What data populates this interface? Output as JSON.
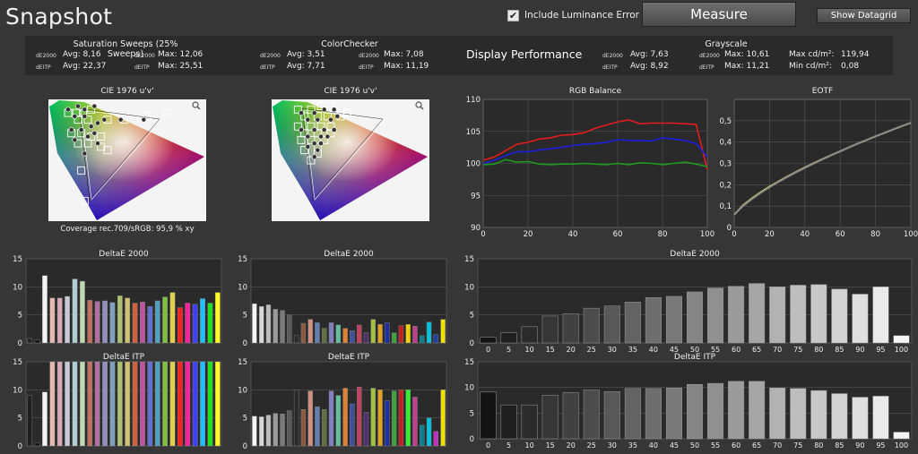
{
  "app": {
    "title": "Snapshot"
  },
  "toolbar": {
    "include_luminance_label": "Include Luminance Error",
    "include_luminance_checked": true,
    "measure_label": "Measure",
    "datagrid_label": "Show Datagrid"
  },
  "summary": {
    "saturation": {
      "title": "Saturation Sweeps (25% Sweeps)",
      "de2000_label": "dE2000",
      "deitp_label": "dEITP",
      "de2000_avg": "Avg: 8,16",
      "de2000_max": "Max: 12,06",
      "deitp_avg": "Avg: 22,37",
      "deitp_max": "Max: 25,51"
    },
    "colorchecker": {
      "title": "ColorChecker",
      "de2000_label": "dE2000",
      "deitp_label": "dEITP",
      "de2000_avg": "Avg: 3,51",
      "de2000_max": "Max: 7,08",
      "deitp_avg": "Avg: 7,71",
      "deitp_max": "Max: 11,19"
    },
    "display_performance": "Display Performance",
    "grayscale": {
      "title": "Grayscale",
      "de2000_label": "dE2000",
      "deitp_label": "dEITP",
      "de2000_avg": "Avg: 7,63",
      "de2000_max": "Max: 10,61",
      "deitp_avg": "Avg: 8,92",
      "deitp_max": "Max: 11,21",
      "max_cd_label": "Max cd/m²:",
      "max_cd": "119,94",
      "min_cd_label": "Min cd/m²:",
      "min_cd": "0,08"
    }
  },
  "colors": {
    "red": "#e51c1c",
    "green": "#1e9a1e",
    "blue": "#1e1ee0",
    "yellow": "#e0e070",
    "gray_line": "#888888"
  },
  "chart_data": [
    {
      "id": "cie1",
      "type": "scatter",
      "title": "CIE 1976 u'v'",
      "icon": "magnifier-icon",
      "annotation": "Coverage rec.709/sRGB:  95,9 % xy",
      "targets": [
        [
          0.13,
          0.52
        ],
        [
          0.155,
          0.52
        ],
        [
          0.175,
          0.52
        ],
        [
          0.2,
          0.53
        ],
        [
          0.16,
          0.5
        ],
        [
          0.19,
          0.5
        ],
        [
          0.25,
          0.5
        ],
        [
          0.3,
          0.5
        ],
        [
          0.37,
          0.51
        ],
        [
          0.43,
          0.52
        ],
        [
          0.14,
          0.46
        ],
        [
          0.17,
          0.46
        ],
        [
          0.2,
          0.45
        ],
        [
          0.23,
          0.45
        ],
        [
          0.16,
          0.43
        ],
        [
          0.19,
          0.43
        ],
        [
          0.23,
          0.42
        ],
        [
          0.17,
          0.35
        ],
        [
          0.18,
          0.26
        ],
        [
          0.25,
          0.41
        ]
      ],
      "measured": [
        [
          0.13,
          0.53
        ],
        [
          0.16,
          0.54
        ],
        [
          0.18,
          0.53
        ],
        [
          0.21,
          0.54
        ],
        [
          0.15,
          0.51
        ],
        [
          0.18,
          0.51
        ],
        [
          0.24,
          0.5
        ],
        [
          0.29,
          0.5
        ],
        [
          0.36,
          0.5
        ],
        [
          0.14,
          0.47
        ],
        [
          0.17,
          0.47
        ],
        [
          0.21,
          0.46
        ],
        [
          0.22,
          0.49
        ],
        [
          0.15,
          0.44
        ],
        [
          0.19,
          0.45
        ],
        [
          0.22,
          0.43
        ],
        [
          0.18,
          0.4
        ],
        [
          0.2,
          0.48
        ]
      ]
    },
    {
      "id": "cie2",
      "type": "scatter",
      "title": "CIE 1976 u'v'",
      "icon": "magnifier-icon",
      "targets": [
        [
          0.15,
          0.53
        ],
        [
          0.19,
          0.53
        ],
        [
          0.22,
          0.54
        ],
        [
          0.25,
          0.54
        ],
        [
          0.17,
          0.51
        ],
        [
          0.21,
          0.51
        ],
        [
          0.24,
          0.51
        ],
        [
          0.28,
          0.51
        ],
        [
          0.15,
          0.48
        ],
        [
          0.19,
          0.48
        ],
        [
          0.22,
          0.48
        ],
        [
          0.25,
          0.48
        ],
        [
          0.3,
          0.52
        ],
        [
          0.17,
          0.46
        ],
        [
          0.21,
          0.46
        ],
        [
          0.25,
          0.46
        ],
        [
          0.19,
          0.44
        ],
        [
          0.23,
          0.44
        ],
        [
          0.21,
          0.42
        ],
        [
          0.16,
          0.44
        ],
        [
          0.21,
          0.4
        ],
        [
          0.19,
          0.38
        ],
        [
          0.17,
          0.41
        ]
      ],
      "measured": [
        [
          0.16,
          0.52
        ],
        [
          0.2,
          0.52
        ],
        [
          0.23,
          0.53
        ],
        [
          0.26,
          0.53
        ],
        [
          0.18,
          0.5
        ],
        [
          0.21,
          0.5
        ],
        [
          0.25,
          0.5
        ],
        [
          0.27,
          0.51
        ],
        [
          0.16,
          0.47
        ],
        [
          0.2,
          0.47
        ],
        [
          0.23,
          0.47
        ],
        [
          0.26,
          0.47
        ],
        [
          0.18,
          0.45
        ],
        [
          0.22,
          0.45
        ],
        [
          0.24,
          0.45
        ],
        [
          0.2,
          0.43
        ],
        [
          0.22,
          0.43
        ],
        [
          0.18,
          0.42
        ],
        [
          0.21,
          0.41
        ],
        [
          0.2,
          0.39
        ]
      ]
    },
    {
      "id": "rgb",
      "type": "line",
      "title": "RGB Balance",
      "xlim": [
        0,
        100
      ],
      "ylim": [
        90,
        110
      ],
      "xticks": [
        0,
        20,
        40,
        60,
        80,
        100
      ],
      "yticks": [
        90,
        95,
        100,
        105,
        110
      ],
      "x": [
        0,
        5,
        10,
        15,
        20,
        25,
        30,
        35,
        40,
        45,
        50,
        55,
        60,
        65,
        70,
        75,
        80,
        85,
        90,
        95,
        100
      ],
      "series": [
        {
          "color": "red",
          "values": [
            100.5,
            101,
            102,
            103,
            103.3,
            103.8,
            104,
            104.4,
            104.5,
            104.8,
            105.5,
            106,
            106.5,
            106.8,
            106.2,
            106.3,
            106.3,
            106.3,
            106.2,
            106.1,
            99
          ]
        },
        {
          "color": "blue",
          "values": [
            100,
            100.5,
            101.2,
            101.8,
            101.8,
            102.1,
            102.3,
            102.5,
            102.8,
            103,
            103.1,
            103.3,
            103.7,
            103.6,
            103.6,
            103.5,
            104,
            103.8,
            103.6,
            103.1,
            101
          ]
        },
        {
          "color": "green",
          "values": [
            99.8,
            99.9,
            100.6,
            100.2,
            100.3,
            99.9,
            99.8,
            99.9,
            99.9,
            100,
            99.9,
            99.8,
            100,
            99.8,
            100.1,
            100,
            99.8,
            100,
            100.2,
            99.9,
            99.5
          ]
        }
      ]
    },
    {
      "id": "eotf",
      "type": "line",
      "title": "EOTF",
      "xlim": [
        0,
        100
      ],
      "ylim": [
        0,
        0.6
      ],
      "xticks": [
        0,
        20,
        40,
        60,
        80,
        100
      ],
      "yticks": [
        0,
        0.1,
        0.2,
        0.3,
        0.4,
        0.5
      ],
      "yticklabels": [
        "0",
        "0,1",
        "0,2",
        "0,3",
        "0,4",
        "0,5"
      ],
      "x": [
        0,
        5,
        10,
        15,
        20,
        25,
        30,
        35,
        40,
        45,
        50,
        55,
        60,
        65,
        70,
        75,
        80,
        85,
        90,
        95,
        100
      ],
      "series": [
        {
          "color": "yellow",
          "values": [
            0.06,
            0.104,
            0.136,
            0.165,
            0.191,
            0.215,
            0.238,
            0.26,
            0.281,
            0.301,
            0.32,
            0.339,
            0.357,
            0.375,
            0.393,
            0.41,
            0.427,
            0.443,
            0.459,
            0.475,
            0.49
          ]
        },
        {
          "color": "gray_line",
          "values": [
            0.06,
            0.101,
            0.133,
            0.162,
            0.188,
            0.213,
            0.236,
            0.258,
            0.279,
            0.299,
            0.319,
            0.338,
            0.357,
            0.375,
            0.393,
            0.41,
            0.427,
            0.443,
            0.459,
            0.475,
            0.49
          ]
        }
      ]
    },
    {
      "id": "sat_de2000",
      "type": "bar",
      "title": "DeltaE 2000",
      "ylim": [
        0,
        15
      ],
      "yticks": [
        0,
        5,
        10,
        15
      ],
      "bars": [
        {
          "v": 0.8,
          "c": "#222"
        },
        {
          "v": 0.5,
          "c": "#111"
        },
        {
          "v": 12,
          "c": "#f4f4f4"
        },
        {
          "v": 8,
          "c": "#e8b8b0"
        },
        {
          "v": 8,
          "c": "#d8a8b8"
        },
        {
          "v": 8.3,
          "c": "#c8c8d8"
        },
        {
          "v": 11.4,
          "c": "#b0d0d0"
        },
        {
          "v": 11,
          "c": "#c0d8b0"
        },
        {
          "v": 7.6,
          "c": "#c07060"
        },
        {
          "v": 7.4,
          "c": "#b070a0"
        },
        {
          "v": 7.5,
          "c": "#9090c0"
        },
        {
          "v": 7.2,
          "c": "#80a0c0"
        },
        {
          "v": 8.4,
          "c": "#b0c070"
        },
        {
          "v": 8,
          "c": "#d0c070"
        },
        {
          "v": 7.1,
          "c": "#d06040"
        },
        {
          "v": 7.3,
          "c": "#c050a0"
        },
        {
          "v": 6.5,
          "c": "#6070d0"
        },
        {
          "v": 7.5,
          "c": "#50a0c0"
        },
        {
          "v": 8.2,
          "c": "#80c040"
        },
        {
          "v": 9,
          "c": "#e0d050"
        },
        {
          "v": 6.3,
          "c": "#ff2020"
        },
        {
          "v": 7.1,
          "c": "#ff20a0"
        },
        {
          "v": 6.9,
          "c": "#4040ff"
        },
        {
          "v": 7.9,
          "c": "#20c0ff"
        },
        {
          "v": 7.1,
          "c": "#20e020"
        },
        {
          "v": 9,
          "c": "#ffff20"
        }
      ]
    },
    {
      "id": "cc_de2000",
      "type": "bar",
      "title": "DeltaE 2000",
      "ylim": [
        0,
        15
      ],
      "yticks": [
        0,
        5,
        10,
        15
      ],
      "bars": [
        {
          "v": 7,
          "c": "#f5f5f5"
        },
        {
          "v": 6.5,
          "c": "#d8d8d8"
        },
        {
          "v": 6.8,
          "c": "#bcbcbc"
        },
        {
          "v": 6,
          "c": "#9a9a9a"
        },
        {
          "v": 5.8,
          "c": "#7a7a7a"
        },
        {
          "v": 5,
          "c": "#5a5a5a"
        },
        {
          "v": 1.3,
          "c": "#2a2a2a"
        },
        {
          "v": 3.5,
          "c": "#8a5a40"
        },
        {
          "v": 4.2,
          "c": "#d09080"
        },
        {
          "v": 3.6,
          "c": "#6080b0"
        },
        {
          "v": 2.6,
          "c": "#607040"
        },
        {
          "v": 3.6,
          "c": "#8080c0"
        },
        {
          "v": 3.2,
          "c": "#60c0a0"
        },
        {
          "v": 2.6,
          "c": "#e08030"
        },
        {
          "v": 2.2,
          "c": "#4050a0"
        },
        {
          "v": 3.2,
          "c": "#c04060"
        },
        {
          "v": 1.8,
          "c": "#50306a"
        },
        {
          "v": 4.2,
          "c": "#a0c040"
        },
        {
          "v": 3.3,
          "c": "#e0a020"
        },
        {
          "v": 3.6,
          "c": "#2030a0"
        },
        {
          "v": 1.8,
          "c": "#40a040"
        },
        {
          "v": 3.1,
          "c": "#c02020"
        },
        {
          "v": 3.3,
          "c": "#f0d000"
        },
        {
          "v": 3,
          "c": "#c04090"
        },
        {
          "v": 1.3,
          "c": "#008090"
        },
        {
          "v": 3.7,
          "c": "#00c0e0"
        },
        {
          "v": 1.5,
          "c": "#2040a0"
        },
        {
          "v": 4.2,
          "c": "#f0e000"
        }
      ]
    },
    {
      "id": "gs_de2000",
      "type": "bar",
      "title": "DeltaE 2000",
      "ylim": [
        0,
        15
      ],
      "yticks": [
        0,
        5,
        10,
        15
      ],
      "categories": [
        "0",
        "5",
        "10",
        "15",
        "20",
        "25",
        "30",
        "35",
        "40",
        "45",
        "50",
        "55",
        "60",
        "65",
        "70",
        "75",
        "80",
        "85",
        "90",
        "95",
        "100"
      ],
      "values": [
        1,
        1.8,
        2.9,
        4.8,
        5.2,
        6.2,
        6.6,
        7.3,
        8.1,
        8.3,
        9.1,
        9.8,
        10.1,
        10.6,
        10,
        10.3,
        10.4,
        9.6,
        8.7,
        10,
        1.3
      ]
    },
    {
      "id": "sat_deitp",
      "type": "bar",
      "title": "DeltaE ITP",
      "ylim": [
        0,
        15
      ],
      "yticks": [
        0,
        5,
        10,
        15
      ],
      "bars": [
        {
          "v": 9,
          "c": "#202020"
        },
        {
          "v": 0.5,
          "c": "#111"
        },
        {
          "v": 9.6,
          "c": "#f4f4f4"
        },
        {
          "v": 15,
          "c": "#e8b8b0"
        },
        {
          "v": 15,
          "c": "#d8a8b8"
        },
        {
          "v": 15,
          "c": "#c8c8d8"
        },
        {
          "v": 15,
          "c": "#b0d0d0"
        },
        {
          "v": 15,
          "c": "#c0d8b0"
        },
        {
          "v": 15,
          "c": "#c07060"
        },
        {
          "v": 15,
          "c": "#b070a0"
        },
        {
          "v": 15,
          "c": "#9090c0"
        },
        {
          "v": 15,
          "c": "#80a0c0"
        },
        {
          "v": 15,
          "c": "#b0c070"
        },
        {
          "v": 15,
          "c": "#d0c070"
        },
        {
          "v": 15,
          "c": "#d06040"
        },
        {
          "v": 15,
          "c": "#c050a0"
        },
        {
          "v": 15,
          "c": "#6070d0"
        },
        {
          "v": 15,
          "c": "#50a0c0"
        },
        {
          "v": 15,
          "c": "#80c040"
        },
        {
          "v": 15,
          "c": "#e0d050"
        },
        {
          "v": 15,
          "c": "#ff2020"
        },
        {
          "v": 15,
          "c": "#ff20a0"
        },
        {
          "v": 15,
          "c": "#4040ff"
        },
        {
          "v": 15,
          "c": "#20c0ff"
        },
        {
          "v": 15,
          "c": "#20e020"
        },
        {
          "v": 15,
          "c": "#ffff20"
        }
      ]
    },
    {
      "id": "cc_deitp",
      "type": "bar",
      "title": "DeltaE ITP",
      "ylim": [
        0,
        15
      ],
      "yticks": [
        0,
        5,
        10,
        15
      ],
      "bars": [
        {
          "v": 5.3,
          "c": "#f5f5f5"
        },
        {
          "v": 5.2,
          "c": "#d8d8d8"
        },
        {
          "v": 5.5,
          "c": "#bcbcbc"
        },
        {
          "v": 5.8,
          "c": "#9a9a9a"
        },
        {
          "v": 5.7,
          "c": "#7a7a7a"
        },
        {
          "v": 6.3,
          "c": "#5a5a5a"
        },
        {
          "v": 10,
          "c": "#2a2a2a"
        },
        {
          "v": 6.5,
          "c": "#8a5a40"
        },
        {
          "v": 9.8,
          "c": "#d09080"
        },
        {
          "v": 7,
          "c": "#6080b0"
        },
        {
          "v": 6.5,
          "c": "#607040"
        },
        {
          "v": 9.8,
          "c": "#8080c0"
        },
        {
          "v": 9,
          "c": "#60c0a0"
        },
        {
          "v": 10.3,
          "c": "#e08030"
        },
        {
          "v": 7.5,
          "c": "#4050a0"
        },
        {
          "v": 10.5,
          "c": "#c04060"
        },
        {
          "v": 6,
          "c": "#50306a"
        },
        {
          "v": 10.3,
          "c": "#a0c040"
        },
        {
          "v": 10,
          "c": "#e0a020"
        },
        {
          "v": 8.1,
          "c": "#2030a0"
        },
        {
          "v": 9.8,
          "c": "#40a040"
        },
        {
          "v": 10,
          "c": "#c02020"
        },
        {
          "v": 10,
          "c": "#30f030"
        },
        {
          "v": 8.7,
          "c": "#c04090"
        },
        {
          "v": 3.7,
          "c": "#008090"
        },
        {
          "v": 5,
          "c": "#00c0e0"
        },
        {
          "v": 2.6,
          "c": "#c030c0"
        },
        {
          "v": 10,
          "c": "#f0e000"
        }
      ]
    },
    {
      "id": "gs_deitp",
      "type": "bar",
      "title": "DeltaE ITP",
      "ylim": [
        0,
        15
      ],
      "yticks": [
        0,
        5,
        10,
        15
      ],
      "categories": [
        "0",
        "5",
        "10",
        "15",
        "20",
        "25",
        "30",
        "35",
        "40",
        "45",
        "50",
        "55",
        "60",
        "65",
        "70",
        "75",
        "80",
        "85",
        "90",
        "95",
        "100"
      ],
      "values": [
        9.1,
        6.6,
        6.6,
        8.5,
        9,
        9.5,
        9.2,
        9.8,
        9.8,
        9.9,
        10.6,
        10.8,
        11.2,
        11.2,
        9.9,
        9.8,
        9.4,
        8.8,
        8.1,
        8.3,
        1.3
      ]
    }
  ]
}
